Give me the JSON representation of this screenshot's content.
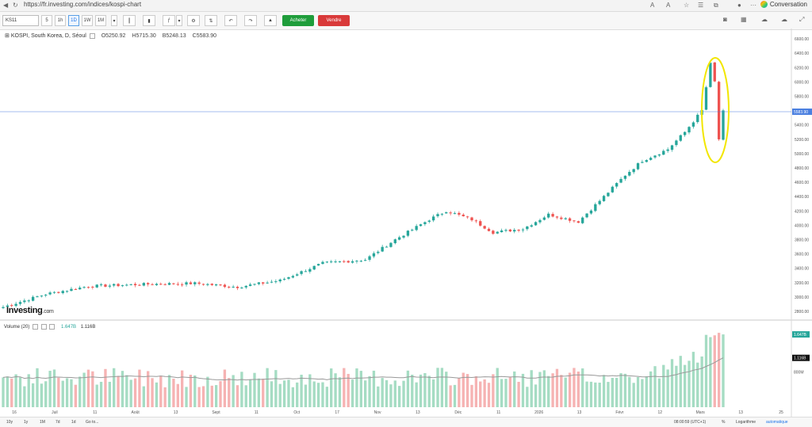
{
  "browser": {
    "url": "https://fr.investing.com/indices/kospi-chart",
    "conversation_label": "Conversation"
  },
  "toolbar": {
    "symbol": "KS11",
    "intervals": [
      "5",
      "1h",
      "1D",
      "1W",
      "1M"
    ],
    "active_interval": "1D",
    "buy_label": "Acheter",
    "sell_label": "Vendre"
  },
  "legend": {
    "title": "KOSPI, South Korea, D, Séoul",
    "open": "O5250.92",
    "high": "H5715.30",
    "low": "B5248.13",
    "close": "C5583.90"
  },
  "volume_legend": {
    "label": "Volume (20)",
    "volume": "1.647B",
    "ma": "1.116B"
  },
  "logo": {
    "main": "Investing",
    "suffix": ".com"
  },
  "bottom": {
    "ranges": [
      "10y",
      "1y",
      "1M",
      "7d",
      "1d",
      "Go to..."
    ],
    "time": "08:00:59 (UTC+1)",
    "percent": "%",
    "log": "Logarithme",
    "auto": "automatique"
  },
  "colors": {
    "up": "#26a69a",
    "down": "#ef5350",
    "vol_up": "#a5dcc3",
    "vol_down": "#f6b3b3",
    "price_line": "#4a7fe0",
    "ma_line": "#999999",
    "highlight": "#f2e600"
  },
  "chart_data": {
    "type": "candlestick",
    "title": "KOSPI, South Korea, D, Séoul",
    "y_axis_labels": [
      "2800.00",
      "3000.00",
      "3200.00",
      "3400.00",
      "3600.00",
      "3800.00",
      "4000.00",
      "4200.00",
      "4400.00",
      "4600.00",
      "4800.00",
      "5000.00",
      "5200.00",
      "5400.00",
      "5600.00",
      "5800.00",
      "6000.00",
      "6200.00",
      "6400.00",
      "6600.00"
    ],
    "ylim": [
      2700,
      6700
    ],
    "current_price": 5583.9,
    "current_price_label": "5583.90",
    "x_tick_labels": [
      "16",
      "Juil",
      "11",
      "Août",
      "13",
      "Sept",
      "11",
      "Oct",
      "17",
      "Nov",
      "13",
      "Déc",
      "11",
      "2026",
      "13",
      "Févr",
      "12",
      "Mars",
      "13",
      "25"
    ],
    "volume_axis_labels": [
      "1.647B",
      "1.116B",
      "800M"
    ],
    "volume_ylim": [
      0,
      1.9
    ],
    "volume_ma_period": 20,
    "annotation": "yellow ellipse around the latest candles"
  }
}
